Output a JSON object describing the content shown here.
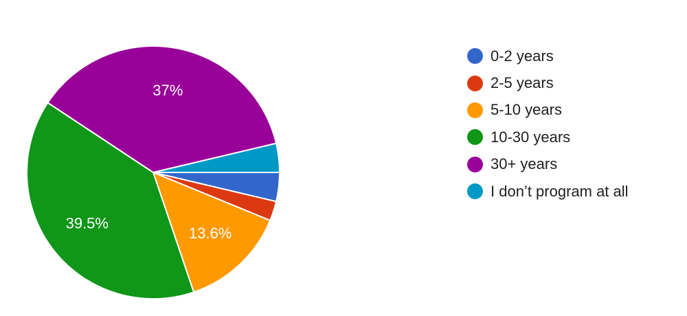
{
  "chart_data": {
    "type": "pie",
    "title": "",
    "slices": [
      {
        "label": "0-2 years",
        "value": 3.7,
        "color": "#3366cc"
      },
      {
        "label": "2-5 years",
        "value": 2.5,
        "color": "#dc3912"
      },
      {
        "label": "5-10 years",
        "value": 13.6,
        "color": "#ff9900",
        "data_label": "13.6%"
      },
      {
        "label": "10-30 years",
        "value": 39.5,
        "color": "#109618",
        "data_label": "39.5%"
      },
      {
        "label": "30+ years",
        "value": 37.0,
        "color": "#990099",
        "data_label": "37%"
      },
      {
        "label": "I don’t program at all",
        "value": 3.7,
        "color": "#0099c6"
      }
    ],
    "legend_placement": "right"
  }
}
